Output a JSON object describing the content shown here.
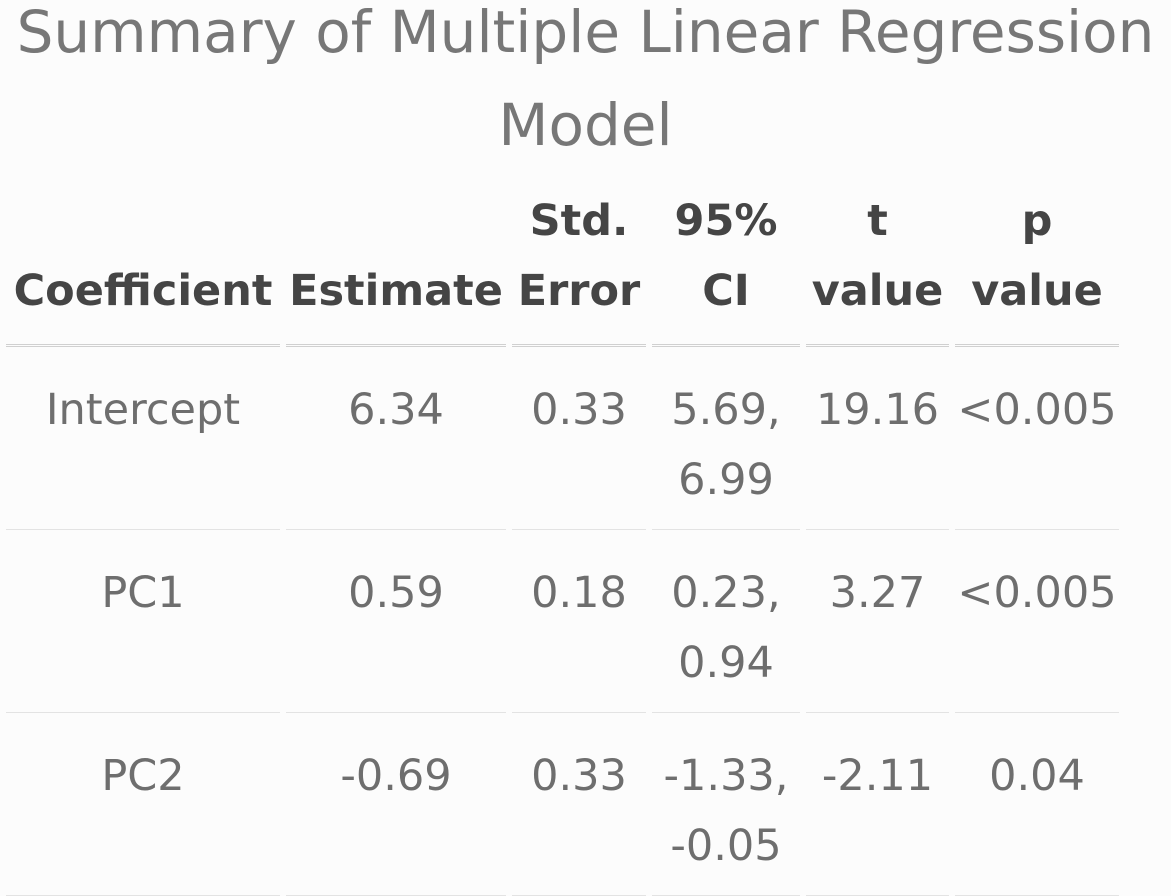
{
  "title": {
    "line1": "Summary of Multiple Linear Regression",
    "line2": "Model"
  },
  "table": {
    "headers": [
      {
        "line1": "",
        "line2": "Coefficient"
      },
      {
        "line1": "",
        "line2": "Estimate"
      },
      {
        "line1": "Std.",
        "line2": "Error"
      },
      {
        "line1": "95%",
        "line2": "CI"
      },
      {
        "line1": "t",
        "line2": "value"
      },
      {
        "line1": "p",
        "line2": "value"
      }
    ],
    "rows": [
      {
        "coef": "Intercept",
        "estimate": "6.34",
        "std_error": "0.33",
        "ci_low": "5.69,",
        "ci_high": "6.99",
        "t_value": "19.16",
        "p_value": "<0.005"
      },
      {
        "coef": "PC1",
        "estimate": "0.59",
        "std_error": "0.18",
        "ci_low": "0.23,",
        "ci_high": "0.94",
        "t_value": "3.27",
        "p_value": "<0.005"
      },
      {
        "coef": "PC2",
        "estimate": "-0.69",
        "std_error": "0.33",
        "ci_low": "-1.33,",
        "ci_high": "-0.05",
        "t_value": "-2.11",
        "p_value": "0.04"
      }
    ]
  }
}
